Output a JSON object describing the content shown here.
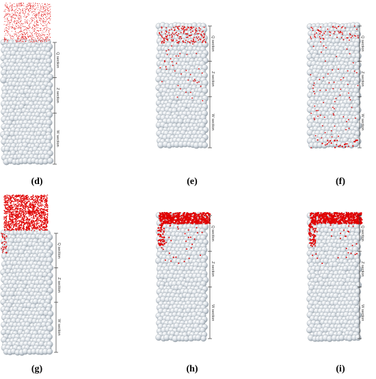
{
  "panels": [
    {
      "id": "d",
      "label": "(d)",
      "particles": "sparse-above",
      "sections": [
        "Q section",
        "Z section",
        "W section"
      ]
    },
    {
      "id": "e",
      "label": "(e)",
      "particles": "scattered-top",
      "sections": [
        "Q section",
        "Z section",
        "W section"
      ]
    },
    {
      "id": "f",
      "label": "(f)",
      "particles": "scattered-all",
      "sections": [
        "Q section",
        "Z section",
        "W section"
      ]
    },
    {
      "id": "g",
      "label": "(g)",
      "particles": "dense-above",
      "sections": [
        "Q section",
        "Z section",
        "W section"
      ]
    },
    {
      "id": "h",
      "label": "(h)",
      "particles": "clogged-top",
      "sections": [
        "Q section",
        "Z section",
        "W section"
      ]
    },
    {
      "id": "i",
      "label": "(i)",
      "particles": "clogged-top",
      "sections": [
        "Q section",
        "Z section",
        "W section"
      ]
    }
  ],
  "colors": {
    "sphere": "#d7dde3",
    "sphere_shade": "#9aa4ad",
    "particle": "#e00000",
    "axis": "#333333"
  }
}
